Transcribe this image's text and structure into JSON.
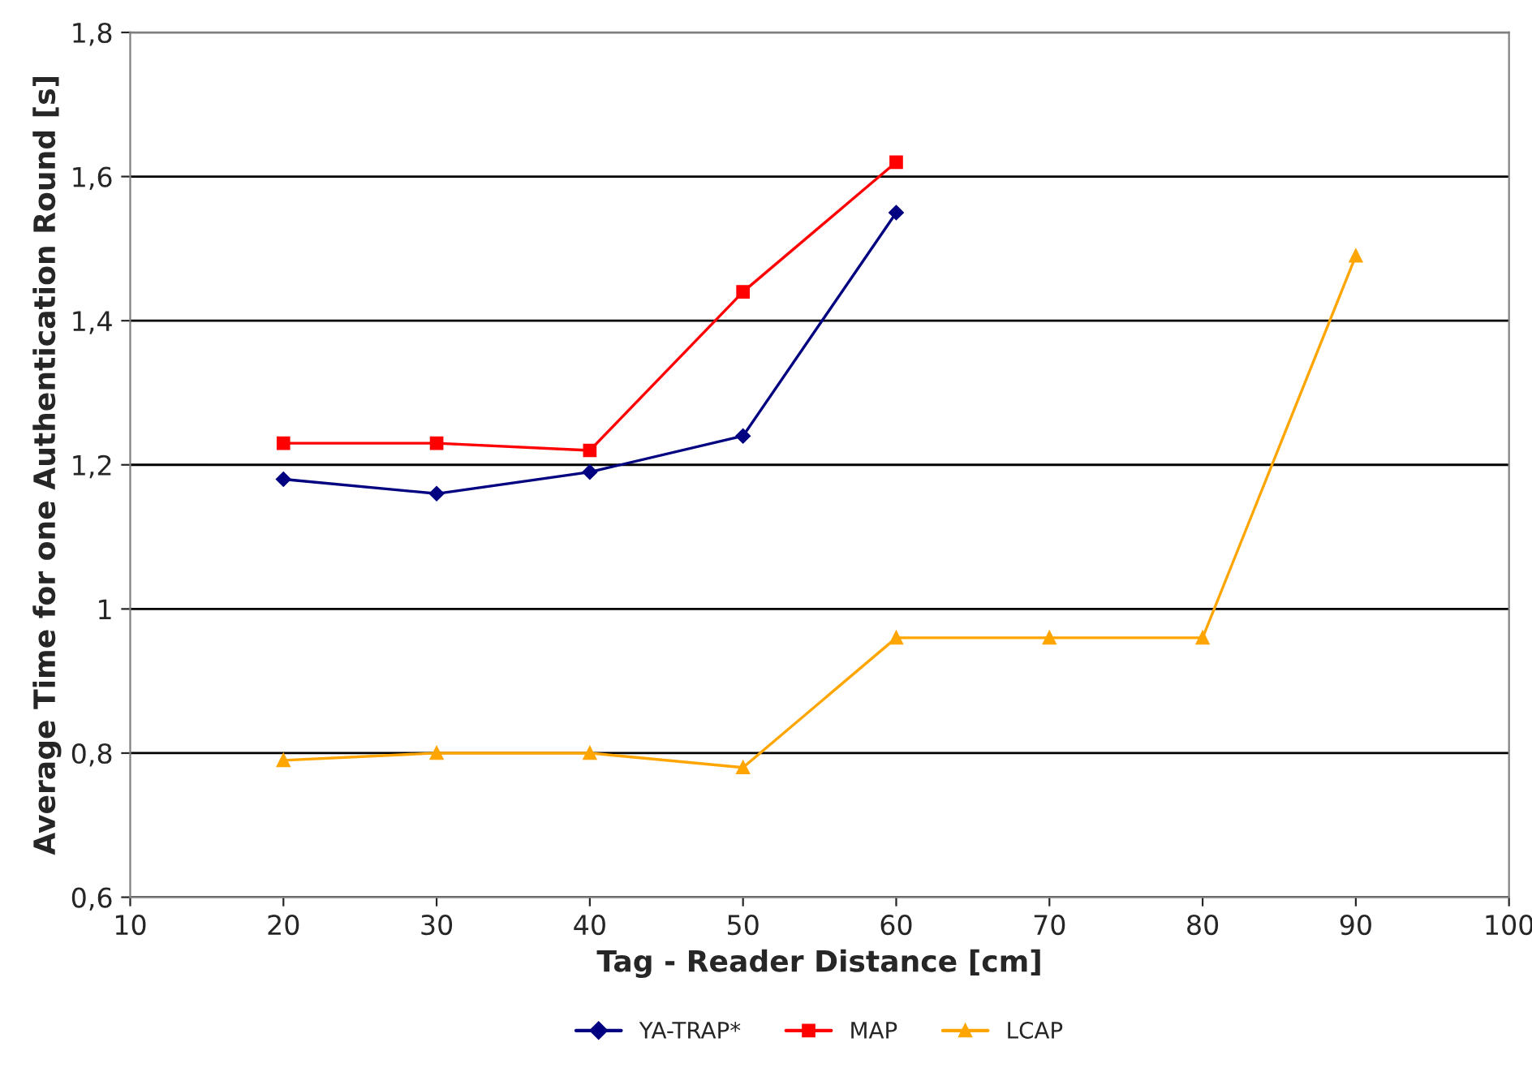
{
  "chart_data": {
    "type": "line",
    "xlabel": "Tag - Reader Distance [cm]",
    "ylabel": "Average Time for one Authentication Round [s]",
    "x": [
      20,
      30,
      40,
      50,
      60,
      70,
      80,
      90
    ],
    "series": [
      {
        "name": "YA-TRAP*",
        "color": "#000080",
        "marker": "diamond",
        "values": [
          1.18,
          1.16,
          1.19,
          1.24,
          1.55,
          null,
          null,
          null
        ]
      },
      {
        "name": "MAP",
        "color": "#ff0000",
        "marker": "square",
        "values": [
          1.23,
          1.23,
          1.22,
          1.44,
          1.62,
          null,
          null,
          null
        ]
      },
      {
        "name": "LCAP",
        "color": "#ffa500",
        "marker": "triangle",
        "values": [
          0.79,
          0.8,
          0.8,
          0.78,
          0.96,
          0.96,
          0.96,
          1.49
        ]
      }
    ],
    "xlim": [
      10,
      100
    ],
    "xticks": [
      10,
      20,
      30,
      40,
      50,
      60,
      70,
      80,
      90,
      100
    ],
    "ylim": [
      0.6,
      1.8
    ],
    "yticks": [
      {
        "value": 0.6,
        "label": "0,6"
      },
      {
        "value": 0.8,
        "label": "0,8"
      },
      1,
      {
        "value": 1.2,
        "label": "1,2"
      },
      {
        "value": 1.4,
        "label": "1,4"
      },
      {
        "value": 1.6,
        "label": "1,6"
      },
      {
        "value": 1.8,
        "label": "1,8"
      }
    ],
    "grid": "y",
    "legend": "bottom",
    "line_style": "solid"
  }
}
